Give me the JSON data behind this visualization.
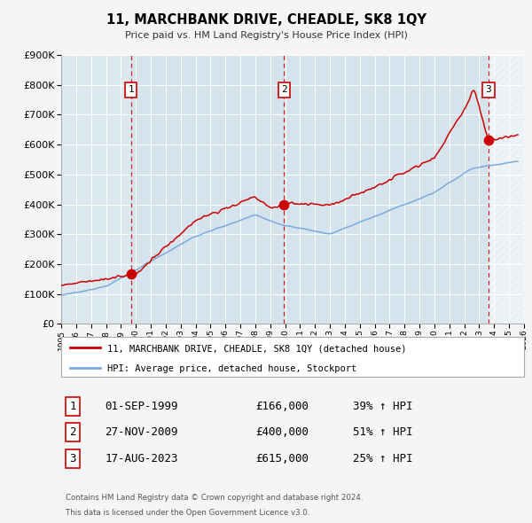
{
  "title": "11, MARCHBANK DRIVE, CHEADLE, SK8 1QY",
  "subtitle": "Price paid vs. HM Land Registry's House Price Index (HPI)",
  "legend_label_red": "11, MARCHBANK DRIVE, CHEADLE, SK8 1QY (detached house)",
  "legend_label_blue": "HPI: Average price, detached house, Stockport",
  "footer_line1": "Contains HM Land Registry data © Crown copyright and database right 2024.",
  "footer_line2": "This data is licensed under the Open Government Licence v3.0.",
  "table_rows": [
    {
      "num": "1",
      "date": "01-SEP-1999",
      "price": "£166,000",
      "hpi": "39% ↑ HPI"
    },
    {
      "num": "2",
      "date": "27-NOV-2009",
      "price": "£400,000",
      "hpi": "51% ↑ HPI"
    },
    {
      "num": "3",
      "date": "17-AUG-2023",
      "price": "£615,000",
      "hpi": "25% ↑ HPI"
    }
  ],
  "sale_points": [
    {
      "year": 1999.67,
      "value": 166000,
      "label": "1"
    },
    {
      "year": 2009.92,
      "value": 400000,
      "label": "2"
    },
    {
      "year": 2023.63,
      "value": 615000,
      "label": "3"
    }
  ],
  "sale_vlines": [
    1999.67,
    2009.92,
    2023.63
  ],
  "ylim": [
    0,
    900000
  ],
  "xlim": [
    1995.0,
    2026.0
  ],
  "red_color": "#cc0000",
  "blue_color": "#7aaadd",
  "vline_color": "#cc0000",
  "plot_bg_color": "#dce8f0",
  "grid_color": "#ffffff",
  "fig_bg_color": "#f5f5f5"
}
